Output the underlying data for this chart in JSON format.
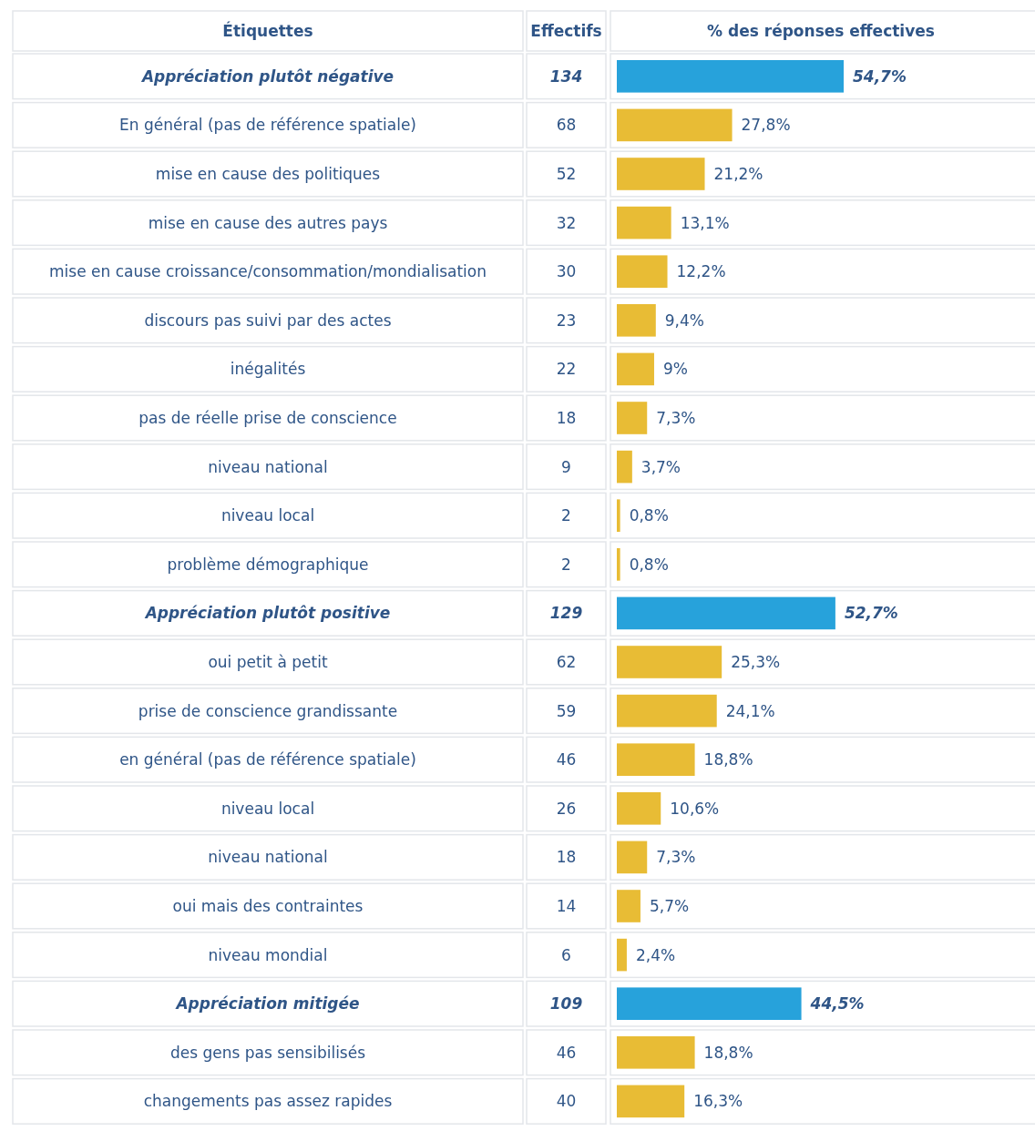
{
  "chart_data": {
    "type": "bar",
    "orientation": "horizontal",
    "ylabel": "Étiquettes",
    "xlabel": "% des réponses effectives",
    "categories": [
      "Appréciation plutôt négative",
      "En général (pas de référence spatiale)",
      "mise en cause des politiques",
      "mise en cause des autres pays",
      "mise en cause croissance/consommation/mondialisation",
      "discours pas suivi par des actes",
      "inégalités",
      "pas de réelle prise de conscience",
      "niveau national",
      "niveau local",
      "problème démographique",
      "Appréciation plutôt positive",
      "oui petit à petit",
      "prise de conscience grandissante",
      "en général (pas de référence spatiale)",
      "niveau local",
      "niveau national",
      "oui mais des contraintes",
      "niveau mondial",
      "Appréciation mitigée",
      "des gens pas sensibilisés",
      "changements pas assez rapides"
    ],
    "values": [
      54.7,
      27.8,
      21.2,
      13.1,
      12.2,
      9.4,
      9,
      7.3,
      3.7,
      0.8,
      0.8,
      52.7,
      25.3,
      24.1,
      18.8,
      10.6,
      7.3,
      5.7,
      2.4,
      44.5,
      18.8,
      16.3
    ],
    "value_labels": [
      "54,7%",
      "27,8%",
      "21,2%",
      "13,1%",
      "12,2%",
      "9,4%",
      "9%",
      "7,3%",
      "3,7%",
      "0,8%",
      "0,8%",
      "52,7%",
      "25,3%",
      "24,1%",
      "18,8%",
      "10,6%",
      "7,3%",
      "5,7%",
      "2,4%",
      "44,5%",
      "18,8%",
      "16,3%"
    ],
    "colors": [
      "#27a2db",
      "#e8bc35",
      "#e8bc35",
      "#e8bc35",
      "#e8bc35",
      "#e8bc35",
      "#e8bc35",
      "#e8bc35",
      "#e8bc35",
      "#e8bc35",
      "#e8bc35",
      "#27a2db",
      "#e8bc35",
      "#e8bc35",
      "#e8bc35",
      "#e8bc35",
      "#e8bc35",
      "#e8bc35",
      "#e8bc35",
      "#27a2db",
      "#e8bc35",
      "#e8bc35"
    ],
    "annotations": [
      "Effectifs",
      "134",
      "68",
      "52",
      "32",
      "30",
      "23",
      "22",
      "18",
      "9",
      "2",
      "2",
      "129",
      "62",
      "59",
      "46",
      "26",
      "18",
      "14",
      "6",
      "109",
      "46",
      "40"
    ]
  }
}
